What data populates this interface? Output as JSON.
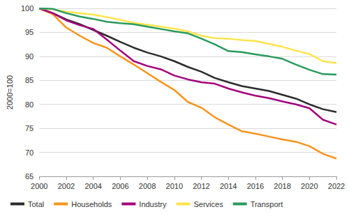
{
  "chart_data": {
    "type": "line",
    "y_label": "2000=100",
    "x": [
      2000,
      2001,
      2002,
      2003,
      2004,
      2005,
      2006,
      2007,
      2008,
      2009,
      2010,
      2011,
      2012,
      2013,
      2014,
      2015,
      2016,
      2017,
      2018,
      2019,
      2020,
      2021,
      2022
    ],
    "series": [
      {
        "name": "Total",
        "color": "#2b2b2b",
        "values": [
          100,
          99.0,
          97.7,
          96.7,
          95.5,
          94.3,
          93.0,
          91.8,
          90.8,
          90.0,
          89.0,
          87.8,
          86.8,
          85.5,
          84.6,
          83.8,
          83.3,
          82.8,
          82.0,
          81.2,
          80.0,
          79.0,
          78.4
        ]
      },
      {
        "name": "Households",
        "color": "#f7941d",
        "values": [
          100,
          98.8,
          96.0,
          94.3,
          92.8,
          91.8,
          90.0,
          88.3,
          86.5,
          84.7,
          83.0,
          80.5,
          79.3,
          77.3,
          75.8,
          74.4,
          73.9,
          73.3,
          72.7,
          72.2,
          71.3,
          69.7,
          68.7
        ]
      },
      {
        "name": "Industry",
        "color": "#a3007d",
        "values": [
          100,
          99.0,
          97.5,
          96.5,
          95.7,
          93.5,
          91.2,
          89.0,
          88.0,
          87.3,
          86.0,
          85.2,
          84.6,
          84.3,
          83.3,
          82.5,
          81.8,
          81.3,
          80.6,
          80.0,
          79.2,
          76.8,
          75.8
        ]
      },
      {
        "name": "Services",
        "color": "#ffe34d",
        "values": [
          100,
          99.8,
          99.3,
          99.0,
          98.7,
          98.2,
          97.6,
          97.0,
          96.6,
          96.2,
          95.8,
          95.2,
          94.3,
          93.8,
          93.7,
          93.4,
          93.2,
          92.6,
          92.0,
          91.2,
          90.5,
          89.0,
          88.6
        ]
      },
      {
        "name": "Transport",
        "color": "#289a5c",
        "values": [
          100,
          99.9,
          99.0,
          98.3,
          97.8,
          97.2,
          96.9,
          96.7,
          96.2,
          95.7,
          95.2,
          94.8,
          93.7,
          92.5,
          91.1,
          90.9,
          90.4,
          90.0,
          89.5,
          88.3,
          87.2,
          86.3,
          86.2
        ]
      }
    ],
    "xlim": [
      2000,
      2022
    ],
    "xticks": [
      2000,
      2002,
      2004,
      2006,
      2008,
      2010,
      2012,
      2014,
      2016,
      2018,
      2020,
      2022
    ],
    "ylim": [
      65,
      100
    ],
    "yticks": [
      65,
      70,
      75,
      80,
      85,
      90,
      95,
      100
    ],
    "grid": true,
    "legend": "bottom"
  }
}
